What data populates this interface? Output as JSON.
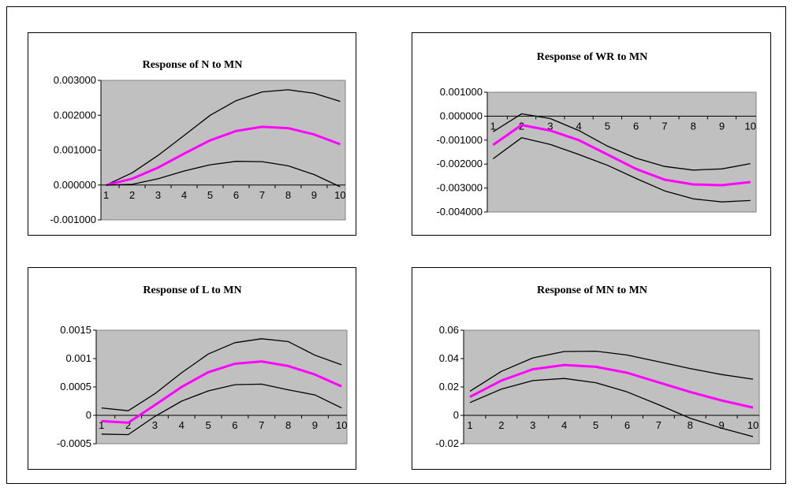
{
  "chart_data": [
    {
      "type": "line",
      "title": "Response of N to MN",
      "x": [
        1,
        2,
        3,
        4,
        5,
        6,
        7,
        8,
        9,
        10
      ],
      "ylim": [
        -0.001,
        0.003
      ],
      "yticks": [
        "0.003000",
        "0.002000",
        "0.001000",
        "0.000000",
        "-0.001000"
      ],
      "ytick_values": [
        0.003,
        0.002,
        0.001,
        0.0,
        -0.001
      ],
      "series": [
        {
          "role": "upper",
          "color": "#000000",
          "values": [
            0.0,
            0.00035,
            0.00085,
            0.00142,
            0.002,
            0.00242,
            0.00267,
            0.00273,
            0.00263,
            0.0024
          ]
        },
        {
          "role": "response",
          "color": "#ff00ff",
          "values": [
            0.0,
            0.00018,
            0.0005,
            0.0009,
            0.00128,
            0.00155,
            0.00167,
            0.00163,
            0.00145,
            0.00117
          ]
        },
        {
          "role": "lower",
          "color": "#000000",
          "values": [
            0.0,
            2e-05,
            0.00018,
            0.0004,
            0.00058,
            0.00068,
            0.00067,
            0.00055,
            0.0003,
            -5e-05
          ]
        }
      ]
    },
    {
      "type": "line",
      "title": "Response of WR to MN",
      "x": [
        1,
        2,
        3,
        4,
        5,
        6,
        7,
        8,
        9,
        10
      ],
      "ylim": [
        -0.004,
        0.001
      ],
      "yticks": [
        "0.001000",
        "0.000000",
        "-0.001000",
        "-0.002000",
        "-0.003000",
        "-0.004000"
      ],
      "ytick_values": [
        0.001,
        0.0,
        -0.001,
        -0.002,
        -0.003,
        -0.004
      ],
      "series": [
        {
          "role": "upper",
          "color": "#000000",
          "values": [
            -0.00065,
            0.0001,
            -0.0001,
            -0.0006,
            -0.00125,
            -0.00175,
            -0.0021,
            -0.00225,
            -0.0022,
            -0.00198
          ]
        },
        {
          "role": "response",
          "color": "#ff00ff",
          "values": [
            -0.0012,
            -0.00037,
            -0.0006,
            -0.001,
            -0.0016,
            -0.0022,
            -0.00265,
            -0.00285,
            -0.00288,
            -0.00275
          ]
        },
        {
          "role": "lower",
          "color": "#000000",
          "values": [
            -0.00178,
            -0.0009,
            -0.00118,
            -0.0016,
            -0.00205,
            -0.0026,
            -0.00312,
            -0.00345,
            -0.00358,
            -0.00352
          ]
        }
      ]
    },
    {
      "type": "line",
      "title": "Response of L to MN",
      "x": [
        1,
        2,
        3,
        4,
        5,
        6,
        7,
        8,
        9,
        10
      ],
      "ylim": [
        -0.0005,
        0.0015
      ],
      "yticks": [
        "0.0015",
        "0.001",
        "0.0005",
        "0",
        "-0.0005"
      ],
      "ytick_values": [
        0.0015,
        0.001,
        0.0005,
        0.0,
        -0.0005
      ],
      "series": [
        {
          "role": "upper",
          "color": "#000000",
          "values": [
            0.00013,
            8e-05,
            0.00038,
            0.00075,
            0.00108,
            0.00128,
            0.00135,
            0.0013,
            0.00106,
            0.00089
          ]
        },
        {
          "role": "response",
          "color": "#ff00ff",
          "values": [
            -0.0001,
            -0.00013,
            0.00018,
            0.0005,
            0.00076,
            0.00091,
            0.00095,
            0.00087,
            0.00072,
            0.00051
          ]
        },
        {
          "role": "lower",
          "color": "#000000",
          "values": [
            -0.00033,
            -0.00034,
            -2e-05,
            0.00025,
            0.00043,
            0.00054,
            0.00055,
            0.00045,
            0.00036,
            0.00013
          ]
        }
      ]
    },
    {
      "type": "line",
      "title": "Response of MN to MN",
      "x": [
        1,
        2,
        3,
        4,
        5,
        6,
        7,
        8,
        9,
        10
      ],
      "ylim": [
        -0.02,
        0.06
      ],
      "yticks": [
        "0.06",
        "0.04",
        "0.02",
        "0",
        "-0.02"
      ],
      "ytick_values": [
        0.06,
        0.04,
        0.02,
        0.0,
        -0.02
      ],
      "series": [
        {
          "role": "upper",
          "color": "#000000",
          "values": [
            0.017,
            0.031,
            0.0405,
            0.045,
            0.0452,
            0.0425,
            0.0378,
            0.033,
            0.0288,
            0.0255
          ]
        },
        {
          "role": "response",
          "color": "#ff00ff",
          "values": [
            0.013,
            0.0245,
            0.0325,
            0.0355,
            0.0342,
            0.03,
            0.0232,
            0.0165,
            0.0105,
            0.0055
          ]
        },
        {
          "role": "lower",
          "color": "#000000",
          "values": [
            0.009,
            0.0185,
            0.0245,
            0.026,
            0.023,
            0.0165,
            0.0075,
            -0.002,
            -0.009,
            -0.015
          ]
        }
      ]
    }
  ]
}
